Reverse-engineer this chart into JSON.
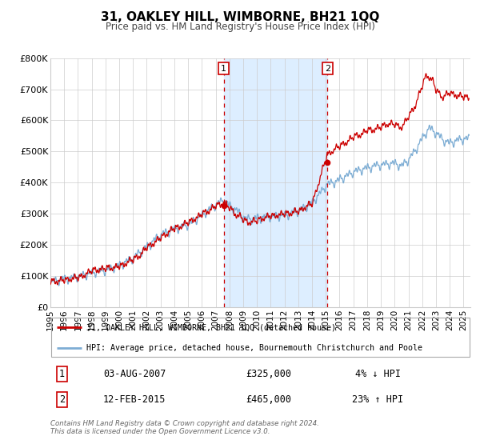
{
  "title": "31, OAKLEY HILL, WIMBORNE, BH21 1QQ",
  "subtitle": "Price paid vs. HM Land Registry's House Price Index (HPI)",
  "legend_line1": "31, OAKLEY HILL, WIMBORNE, BH21 1QQ (detached house)",
  "legend_line2": "HPI: Average price, detached house, Bournemouth Christchurch and Poole",
  "sale1_label": "1",
  "sale1_date": "03-AUG-2007",
  "sale1_price": "£325,000",
  "sale1_hpi": "4% ↓ HPI",
  "sale1_date_num": 2007.58,
  "sale1_price_val": 325000,
  "sale2_label": "2",
  "sale2_date": "12-FEB-2015",
  "sale2_price": "£465,000",
  "sale2_hpi": "23% ↑ HPI",
  "sale2_date_num": 2015.12,
  "sale2_price_val": 465000,
  "footer1": "Contains HM Land Registry data © Crown copyright and database right 2024.",
  "footer2": "This data is licensed under the Open Government Licence v3.0.",
  "line_color_red": "#cc0000",
  "line_color_blue": "#7dadd4",
  "shading_color": "#ddeeff",
  "background_color": "#ffffff",
  "grid_color": "#cccccc",
  "ylim": [
    0,
    800000
  ],
  "xlim_start": 1995.0,
  "xlim_end": 2025.5,
  "yticks": [
    0,
    100000,
    200000,
    300000,
    400000,
    500000,
    600000,
    700000,
    800000
  ],
  "ytick_labels": [
    "£0",
    "£100K",
    "£200K",
    "£300K",
    "£400K",
    "£500K",
    "£600K",
    "£700K",
    "£800K"
  ],
  "xticks": [
    1995,
    1996,
    1997,
    1998,
    1999,
    2000,
    2001,
    2002,
    2003,
    2004,
    2005,
    2006,
    2007,
    2008,
    2009,
    2010,
    2011,
    2012,
    2013,
    2014,
    2015,
    2016,
    2017,
    2018,
    2019,
    2020,
    2021,
    2022,
    2023,
    2024,
    2025
  ]
}
